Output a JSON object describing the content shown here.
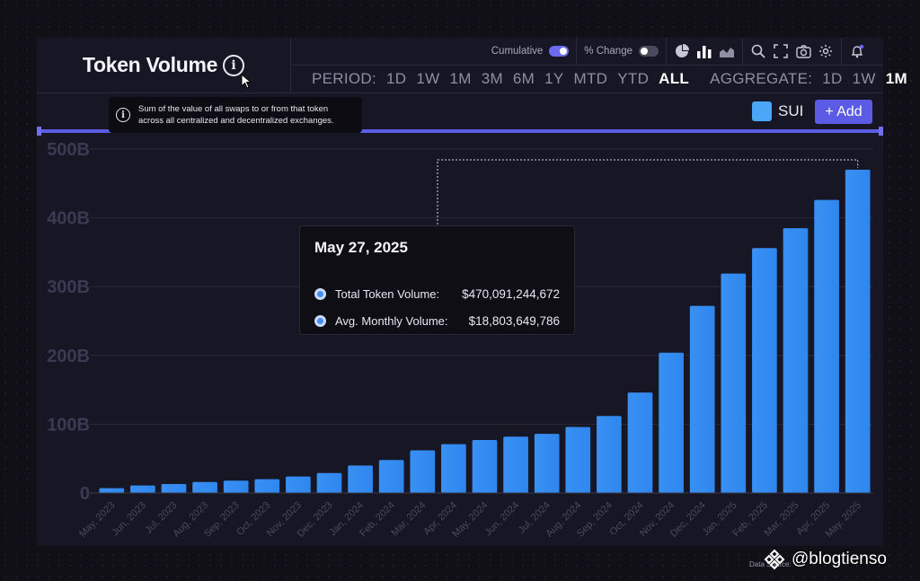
{
  "title": "Token Volume",
  "info_tooltip": "Sum of the value of all swaps to or from that token across all centralized and decentralized exchanges.",
  "toolbar": {
    "cumulative_label": "Cumulative",
    "cumulative_on": true,
    "pct_change_label": "% Change",
    "pct_change_on": false,
    "icons": [
      "pie-chart-icon",
      "bar-chart-icon",
      "area-chart-icon",
      "search-icon",
      "fullscreen-icon",
      "camera-icon",
      "gear-icon",
      "bell-icon"
    ]
  },
  "period": {
    "label": "PERIOD:",
    "options": [
      "1D",
      "1W",
      "1M",
      "3M",
      "6M",
      "1Y",
      "MTD",
      "YTD",
      "ALL"
    ],
    "selected": "ALL"
  },
  "aggregate": {
    "label": "AGGREGATE:",
    "options": [
      "1D",
      "1W",
      "1M"
    ],
    "selected": "1M"
  },
  "legend": {
    "label": "SUI",
    "color": "#4aa6f6"
  },
  "add_button": "+ Add",
  "tooltip": {
    "date": "May 27, 2025",
    "rows": [
      {
        "label": "Total Token Volume:",
        "value": "$470,091,244,672"
      },
      {
        "label": "Avg. Monthly Volume:",
        "value": "$18,803,649,786"
      }
    ]
  },
  "watermark": "@blogtienso",
  "data_source": "Data Source:",
  "chart_data": {
    "type": "bar",
    "title": "Token Volume",
    "categories": [
      "May, 2023",
      "Jun, 2023",
      "Jul, 2023",
      "Aug, 2023",
      "Sep, 2023",
      "Oct, 2023",
      "Nov, 2023",
      "Dec, 2023",
      "Jan, 2024",
      "Feb, 2024",
      "Mar, 2024",
      "Apr, 2024",
      "May, 2024",
      "Jun, 2024",
      "Jul, 2024",
      "Aug, 2024",
      "Sep, 2024",
      "Oct, 2024",
      "Nov, 2024",
      "Dec, 2024",
      "Jan, 2025",
      "Feb, 2025",
      "Mar, 2025",
      "Apr, 2025",
      "May, 2025"
    ],
    "series": [
      {
        "name": "SUI",
        "values": [
          7,
          11,
          13,
          16,
          18,
          20,
          24,
          29,
          40,
          48,
          62,
          71,
          77,
          82,
          86,
          96,
          112,
          146,
          204,
          272,
          319,
          356,
          385,
          426,
          470
        ]
      }
    ],
    "yticks": [
      "0",
      "100B",
      "200B",
      "300B",
      "400B",
      "500B"
    ],
    "ylim": [
      0,
      500
    ],
    "yunit": "B",
    "grid": true,
    "bar_color": "#2f86ee",
    "highlighted_category": "May, 2025"
  }
}
